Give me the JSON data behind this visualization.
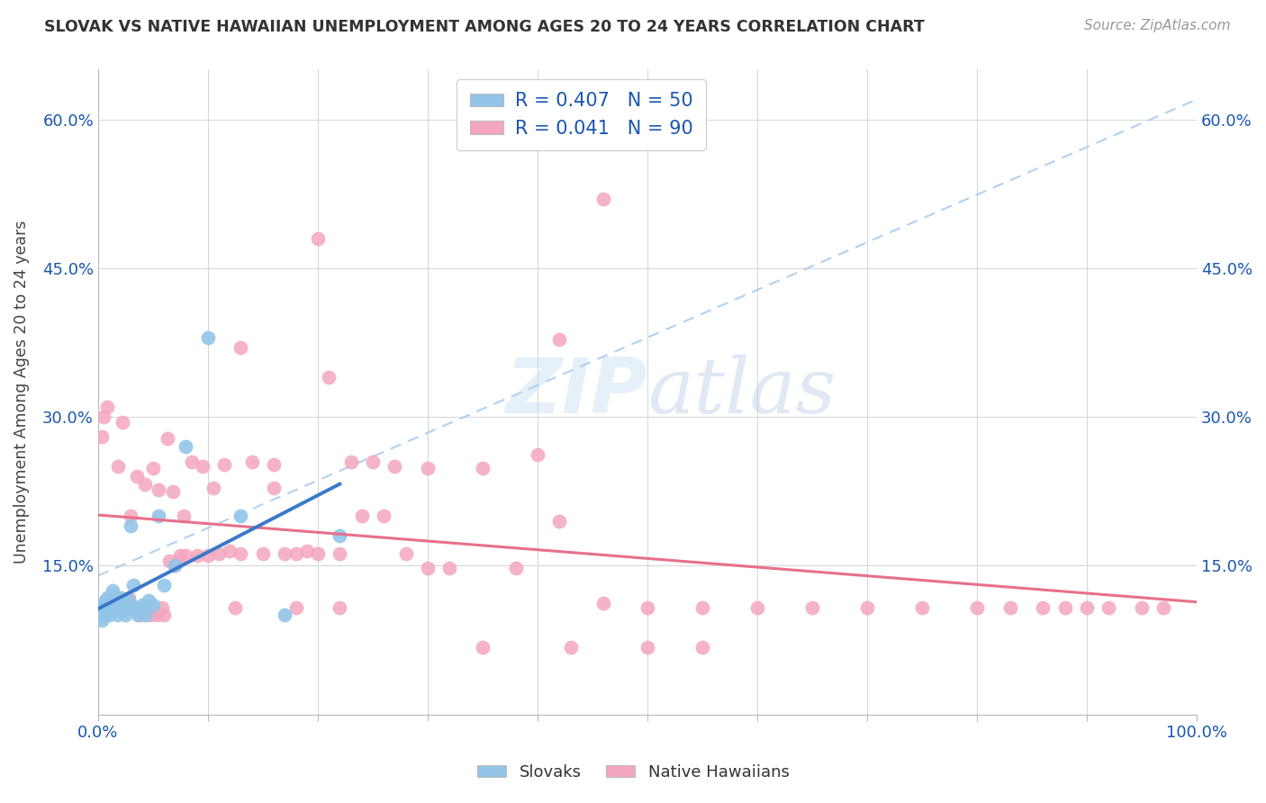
{
  "title": "SLOVAK VS NATIVE HAWAIIAN UNEMPLOYMENT AMONG AGES 20 TO 24 YEARS CORRELATION CHART",
  "source": "Source: ZipAtlas.com",
  "ylabel": "Unemployment Among Ages 20 to 24 years",
  "xlim": [
    0.0,
    1.0
  ],
  "ylim": [
    0.0,
    0.65
  ],
  "background_color": "#ffffff",
  "slovak_color": "#92c5e8",
  "native_hawaiian_color": "#f4a6be",
  "trendline_slovak_color": "#3a78c9",
  "trendline_hawaiian_color": "#e8708a",
  "diagonal_color": "#aaccee",
  "watermark": "ZIPatlas",
  "R_slovak": 0.407,
  "N_slovak": 50,
  "R_hawaiian": 0.041,
  "N_hawaiian": 90,
  "legend_color": "#1a56b0",
  "slovak_x": [
    0.003,
    0.004,
    0.005,
    0.005,
    0.006,
    0.007,
    0.007,
    0.008,
    0.008,
    0.009,
    0.01,
    0.01,
    0.011,
    0.011,
    0.012,
    0.012,
    0.013,
    0.013,
    0.014,
    0.015,
    0.015,
    0.016,
    0.017,
    0.018,
    0.019,
    0.02,
    0.021,
    0.022,
    0.023,
    0.025,
    0.026,
    0.027,
    0.028,
    0.03,
    0.032,
    0.034,
    0.036,
    0.038,
    0.04,
    0.043,
    0.046,
    0.05,
    0.055,
    0.06,
    0.07,
    0.08,
    0.1,
    0.13,
    0.17,
    0.22
  ],
  "slovak_y": [
    0.095,
    0.1,
    0.105,
    0.11,
    0.1,
    0.105,
    0.115,
    0.108,
    0.118,
    0.112,
    0.1,
    0.113,
    0.105,
    0.118,
    0.108,
    0.12,
    0.11,
    0.125,
    0.115,
    0.105,
    0.118,
    0.11,
    0.1,
    0.108,
    0.115,
    0.11,
    0.118,
    0.105,
    0.112,
    0.1,
    0.11,
    0.108,
    0.115,
    0.19,
    0.13,
    0.108,
    0.1,
    0.105,
    0.11,
    0.1,
    0.115,
    0.11,
    0.2,
    0.13,
    0.15,
    0.27,
    0.38,
    0.2,
    0.1,
    0.18
  ],
  "hawaiian_x": [
    0.003,
    0.005,
    0.008,
    0.01,
    0.013,
    0.015,
    0.018,
    0.02,
    0.022,
    0.025,
    0.028,
    0.03,
    0.033,
    0.035,
    0.038,
    0.04,
    0.043,
    0.045,
    0.048,
    0.05,
    0.053,
    0.055,
    0.058,
    0.06,
    0.063,
    0.065,
    0.068,
    0.07,
    0.073,
    0.075,
    0.078,
    0.08,
    0.085,
    0.09,
    0.095,
    0.1,
    0.105,
    0.11,
    0.115,
    0.12,
    0.125,
    0.13,
    0.14,
    0.15,
    0.16,
    0.17,
    0.18,
    0.19,
    0.2,
    0.21,
    0.22,
    0.23,
    0.24,
    0.25,
    0.26,
    0.27,
    0.28,
    0.3,
    0.32,
    0.35,
    0.38,
    0.42,
    0.46,
    0.5,
    0.55,
    0.6,
    0.65,
    0.7,
    0.75,
    0.8,
    0.83,
    0.86,
    0.88,
    0.9,
    0.92,
    0.95,
    0.97,
    0.4,
    0.42,
    0.46,
    0.3,
    0.35,
    0.43,
    0.5,
    0.55,
    0.13,
    0.16,
    0.18,
    0.2,
    0.22
  ],
  "hawaiian_y": [
    0.28,
    0.3,
    0.31,
    0.108,
    0.113,
    0.108,
    0.25,
    0.108,
    0.295,
    0.108,
    0.118,
    0.2,
    0.108,
    0.24,
    0.1,
    0.108,
    0.232,
    0.108,
    0.1,
    0.248,
    0.1,
    0.227,
    0.108,
    0.1,
    0.278,
    0.155,
    0.225,
    0.15,
    0.155,
    0.16,
    0.2,
    0.16,
    0.255,
    0.16,
    0.25,
    0.16,
    0.228,
    0.162,
    0.252,
    0.165,
    0.108,
    0.162,
    0.255,
    0.162,
    0.228,
    0.162,
    0.108,
    0.165,
    0.48,
    0.34,
    0.162,
    0.255,
    0.2,
    0.255,
    0.2,
    0.25,
    0.162,
    0.248,
    0.148,
    0.248,
    0.148,
    0.195,
    0.112,
    0.108,
    0.108,
    0.108,
    0.108,
    0.108,
    0.108,
    0.108,
    0.108,
    0.108,
    0.108,
    0.108,
    0.108,
    0.108,
    0.108,
    0.262,
    0.378,
    0.52,
    0.148,
    0.068,
    0.068,
    0.068,
    0.068,
    0.37,
    0.252,
    0.162,
    0.162,
    0.108
  ]
}
